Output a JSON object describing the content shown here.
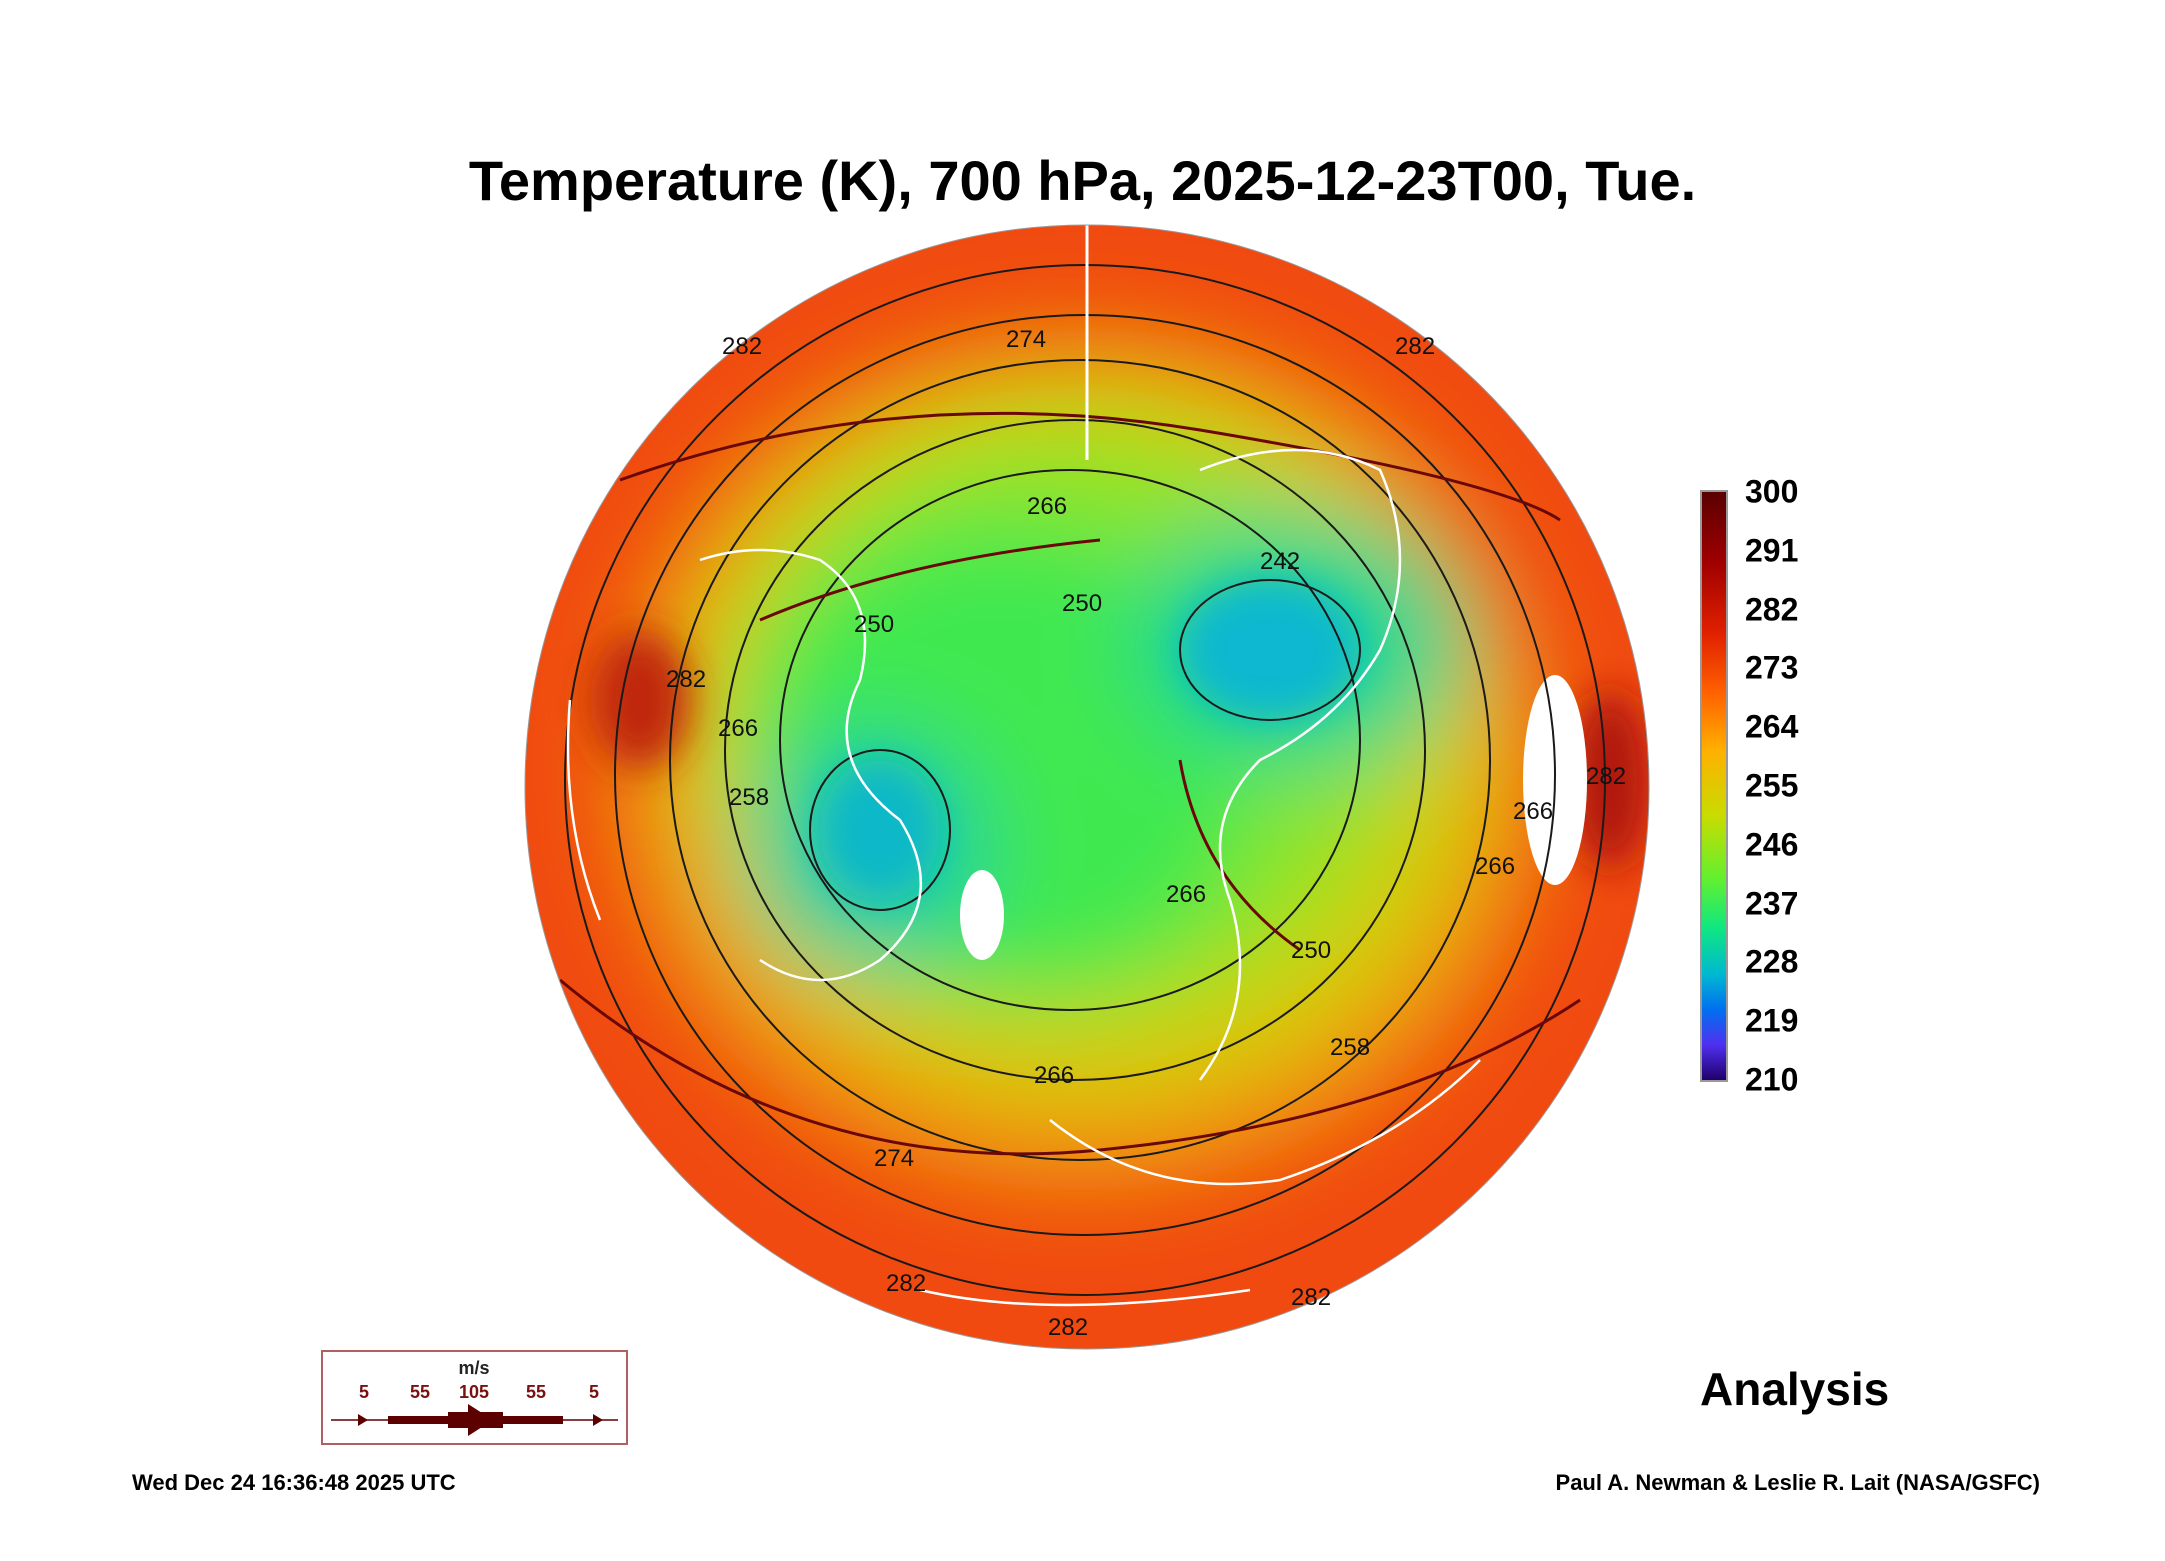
{
  "chart_data": {
    "type": "heatmap",
    "title": "Temperature (K), 700 hPa, 2025-12-23T00, Tue.",
    "projection": "north polar stereographic",
    "colorbar": {
      "min": 210,
      "max": 300,
      "ticks": [
        "300",
        "291",
        "282",
        "273",
        "264",
        "255",
        "246",
        "237",
        "228",
        "219",
        "210"
      ]
    },
    "contour_labels": [
      "282",
      "274",
      "282",
      "266",
      "242",
      "250",
      "250",
      "266",
      "258",
      "282",
      "266",
      "266",
      "266",
      "250",
      "258",
      "266",
      "274",
      "282",
      "282",
      "282",
      "282"
    ],
    "wind_legend": {
      "unit": "m/s",
      "labels": [
        "5",
        "55",
        "105",
        "55",
        "5"
      ]
    },
    "colors": {
      "wind": "#5c0000",
      "coast": "#ffffff",
      "contour": "#1a1a1a"
    }
  },
  "footer": {
    "mode": "Analysis",
    "generated": "Wed Dec 24 16:36:48 2025 UTC",
    "credit": "Paul A. Newman & Leslie R. Lait (NASA/GSFC)"
  }
}
